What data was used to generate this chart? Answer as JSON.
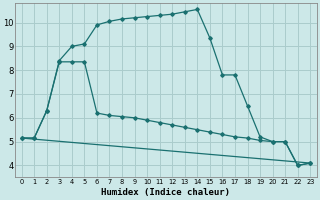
{
  "xlabel": "Humidex (Indice chaleur)",
  "xlim": [
    -0.5,
    23.5
  ],
  "ylim": [
    3.5,
    10.8
  ],
  "yticks": [
    4,
    5,
    6,
    7,
    8,
    9,
    10
  ],
  "xticks": [
    0,
    1,
    2,
    3,
    4,
    5,
    6,
    7,
    8,
    9,
    10,
    11,
    12,
    13,
    14,
    15,
    16,
    17,
    18,
    19,
    20,
    21,
    22,
    23
  ],
  "bg_color": "#cce8e8",
  "grid_color": "#aacccc",
  "line_color": "#1a7070",
  "line1_x": [
    0,
    1,
    2,
    3,
    4,
    5,
    6,
    7,
    8,
    9,
    10,
    11,
    12,
    13,
    14,
    15,
    16,
    17,
    18,
    19,
    20,
    21,
    22,
    23
  ],
  "line1_y": [
    5.15,
    5.15,
    6.3,
    8.4,
    9.0,
    9.1,
    9.9,
    10.05,
    10.15,
    10.2,
    10.25,
    10.3,
    10.35,
    10.45,
    10.55,
    9.35,
    7.8,
    7.8,
    6.5,
    5.2,
    5.0,
    5.0,
    4.0,
    4.1
  ],
  "line2_x": [
    0,
    1,
    2,
    3,
    4,
    5,
    6,
    7,
    8,
    9,
    10,
    11,
    12,
    13,
    14,
    15,
    16,
    17,
    18,
    19,
    20,
    21,
    22,
    23
  ],
  "line2_y": [
    5.15,
    5.15,
    6.3,
    8.35,
    8.35,
    8.35,
    6.2,
    6.1,
    6.05,
    6.0,
    5.9,
    5.8,
    5.7,
    5.6,
    5.5,
    5.4,
    5.3,
    5.2,
    5.15,
    5.05,
    5.0,
    5.0,
    4.0,
    4.1
  ],
  "line3_x": [
    0,
    23
  ],
  "line3_y": [
    5.15,
    4.1
  ],
  "figsize": [
    3.2,
    2.0
  ],
  "dpi": 100
}
